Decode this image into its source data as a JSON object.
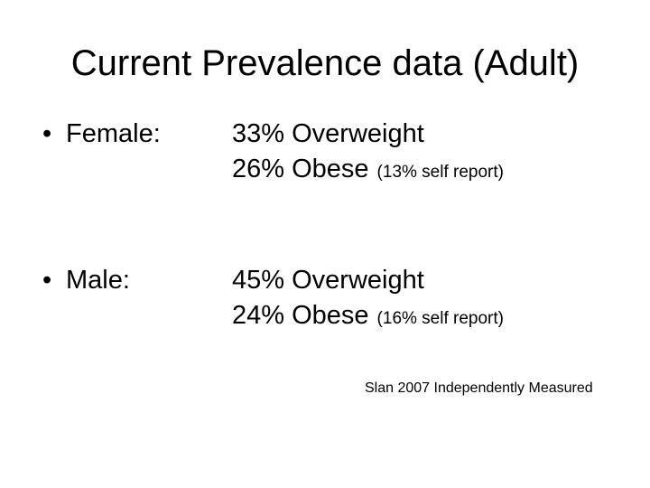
{
  "slide": {
    "title": "Current Prevalence data (Adult)",
    "bullet_char": "•",
    "items": [
      {
        "label": "Female:",
        "overweight_stat": "33% Overweight",
        "obese_stat": "26% Obese",
        "self_report_note": "(13% self report)"
      },
      {
        "label": "Male:",
        "overweight_stat": "45% Overweight",
        "obese_stat": "24% Obese",
        "self_report_note": "(16% self report)"
      }
    ],
    "footnote": "Slan 2007 Independently Measured",
    "colors": {
      "background": "#ffffff",
      "text": "#000000"
    }
  }
}
